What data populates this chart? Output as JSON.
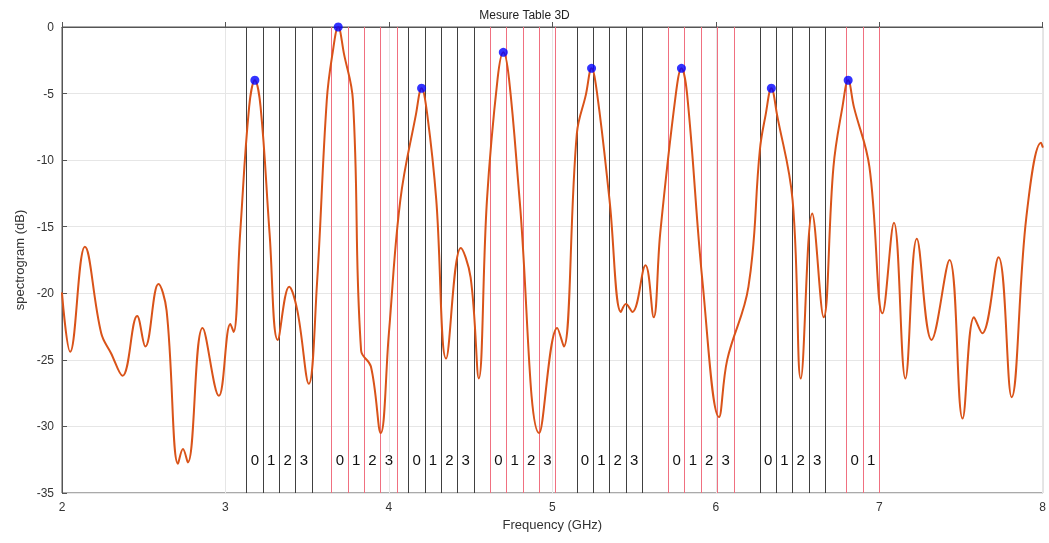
{
  "chart_data": {
    "type": "line",
    "title": "Mesure Table 3D",
    "xlabel": "Frequency (GHz)",
    "ylabel": "spectrogram (dB)",
    "xlim": [
      2,
      8
    ],
    "xticks": [
      2,
      3,
      4,
      5,
      6,
      7,
      8
    ],
    "ylim": [
      -35,
      0
    ],
    "yticks": [
      -35,
      -30,
      -25,
      -20,
      -15,
      -10,
      -5,
      0
    ],
    "grid": true,
    "series": [
      {
        "color": "#d95319",
        "x": [
          2.0,
          2.05,
          2.14,
          2.24,
          2.3,
          2.37,
          2.46,
          2.51,
          2.59,
          2.64,
          2.71,
          2.74,
          2.77,
          2.86,
          2.96,
          3.03,
          3.05,
          3.09,
          3.145,
          3.18,
          3.215,
          3.27,
          3.32,
          3.39,
          3.44,
          3.51,
          3.56,
          3.62,
          3.655,
          3.69,
          3.725,
          3.78,
          3.83,
          3.89,
          3.95,
          4.0,
          4.07,
          4.165,
          4.2,
          4.235,
          4.29,
          4.35,
          4.44,
          4.5,
          4.55,
          4.6,
          4.665,
          4.7,
          4.735,
          4.8,
          4.92,
          5.03,
          5.07,
          5.15,
          5.205,
          5.24,
          5.275,
          5.35,
          5.42,
          5.45,
          5.49,
          5.57,
          5.62,
          5.66,
          5.755,
          5.79,
          5.825,
          5.92,
          6.02,
          6.07,
          6.2,
          6.27,
          6.305,
          6.34,
          6.375,
          6.47,
          6.52,
          6.59,
          6.66,
          6.72,
          6.775,
          6.81,
          6.845,
          6.94,
          7.02,
          7.09,
          7.16,
          7.23,
          7.32,
          7.43,
          7.51,
          7.58,
          7.63,
          7.73,
          7.81,
          7.9,
          7.99,
          8.0
        ],
        "values": [
          -20.0,
          -24.4,
          -16.5,
          -23.0,
          -24.5,
          -26.2,
          -21.7,
          -24.0,
          -19.3,
          -21.3,
          -32.8,
          -31.7,
          -32.7,
          -22.6,
          -27.7,
          -22.3,
          -22.9,
          -15.5,
          -6.0,
          -4.0,
          -6.0,
          -15.5,
          -23.5,
          -19.5,
          -21.3,
          -26.8,
          -19.3,
          -5.5,
          -2.0,
          0,
          -2.0,
          -5.5,
          -24.3,
          -25.5,
          -30.5,
          -23.0,
          -13.0,
          -6.6,
          -4.6,
          -6.6,
          -13.0,
          -24.9,
          -16.6,
          -18.8,
          -26.4,
          -13.0,
          -3.9,
          -1.9,
          -3.9,
          -13.0,
          -30.5,
          -22.6,
          -24.0,
          -8.0,
          -5.1,
          -3.1,
          -5.1,
          -13.0,
          -21.4,
          -20.8,
          -21.4,
          -17.9,
          -21.8,
          -15.5,
          -5.1,
          -3.1,
          -5.1,
          -19.3,
          -29.3,
          -25.0,
          -19.5,
          -9.2,
          -6.6,
          -4.6,
          -6.6,
          -13.0,
          -26.4,
          -14.0,
          -21.8,
          -10.5,
          -6.0,
          -4.0,
          -6.0,
          -10.5,
          -21.5,
          -14.7,
          -26.4,
          -15.9,
          -23.5,
          -17.5,
          -29.4,
          -21.8,
          -23.0,
          -17.3,
          -27.8,
          -14.3,
          -8.7,
          -9.0
        ]
      },
      {
        "type": "scatter",
        "color": "#0000ff",
        "x": [
          3.18,
          3.69,
          4.2,
          4.7,
          5.24,
          5.79,
          6.34,
          6.81
        ],
        "values": [
          -4.0,
          0,
          -4.6,
          -1.9,
          -3.1,
          -3.1,
          -4.6,
          -4.0
        ]
      }
    ],
    "ref_lines": [
      {
        "axis": "x",
        "value": 3.13,
        "color": "#404040"
      },
      {
        "axis": "x",
        "value": 3.23,
        "color": "#404040"
      },
      {
        "axis": "x",
        "value": 3.33,
        "color": "#404040"
      },
      {
        "axis": "x",
        "value": 3.43,
        "color": "#404040"
      },
      {
        "axis": "x",
        "value": 3.53,
        "color": "#404040"
      },
      {
        "axis": "x",
        "value": 3.65,
        "color": "#f07080"
      },
      {
        "axis": "x",
        "value": 3.75,
        "color": "#f07080"
      },
      {
        "axis": "x",
        "value": 3.85,
        "color": "#f07080"
      },
      {
        "axis": "x",
        "value": 3.95,
        "color": "#f07080"
      },
      {
        "axis": "x",
        "value": 4.05,
        "color": "#f07080"
      },
      {
        "axis": "x",
        "value": 4.12,
        "color": "#404040"
      },
      {
        "axis": "x",
        "value": 4.22,
        "color": "#404040"
      },
      {
        "axis": "x",
        "value": 4.32,
        "color": "#404040"
      },
      {
        "axis": "x",
        "value": 4.42,
        "color": "#404040"
      },
      {
        "axis": "x",
        "value": 4.52,
        "color": "#404040"
      },
      {
        "axis": "x",
        "value": 4.62,
        "color": "#f07080"
      },
      {
        "axis": "x",
        "value": 4.72,
        "color": "#f07080"
      },
      {
        "axis": "x",
        "value": 4.82,
        "color": "#f07080"
      },
      {
        "axis": "x",
        "value": 4.92,
        "color": "#f07080"
      },
      {
        "axis": "x",
        "value": 5.02,
        "color": "#f07080"
      },
      {
        "axis": "x",
        "value": 5.15,
        "color": "#404040"
      },
      {
        "axis": "x",
        "value": 5.25,
        "color": "#404040"
      },
      {
        "axis": "x",
        "value": 5.35,
        "color": "#404040"
      },
      {
        "axis": "x",
        "value": 5.45,
        "color": "#404040"
      },
      {
        "axis": "x",
        "value": 5.55,
        "color": "#404040"
      },
      {
        "axis": "x",
        "value": 5.71,
        "color": "#f07080"
      },
      {
        "axis": "x",
        "value": 5.81,
        "color": "#f07080"
      },
      {
        "axis": "x",
        "value": 5.91,
        "color": "#f07080"
      },
      {
        "axis": "x",
        "value": 6.01,
        "color": "#f07080"
      },
      {
        "axis": "x",
        "value": 6.11,
        "color": "#f07080"
      },
      {
        "axis": "x",
        "value": 6.27,
        "color": "#404040"
      },
      {
        "axis": "x",
        "value": 6.37,
        "color": "#404040"
      },
      {
        "axis": "x",
        "value": 6.47,
        "color": "#404040"
      },
      {
        "axis": "x",
        "value": 6.57,
        "color": "#404040"
      },
      {
        "axis": "x",
        "value": 6.67,
        "color": "#404040"
      },
      {
        "axis": "x",
        "value": 6.8,
        "color": "#f07080"
      },
      {
        "axis": "x",
        "value": 6.9,
        "color": "#f07080"
      },
      {
        "axis": "x",
        "value": 7.0,
        "color": "#f07080"
      }
    ],
    "annotations": [
      {
        "text": "0",
        "x": 3.18,
        "y": -32.5
      },
      {
        "text": "1",
        "x": 3.28,
        "y": -32.5
      },
      {
        "text": "2",
        "x": 3.38,
        "y": -32.5
      },
      {
        "text": "3",
        "x": 3.48,
        "y": -32.5
      },
      {
        "text": "0",
        "x": 3.7,
        "y": -32.5
      },
      {
        "text": "1",
        "x": 3.8,
        "y": -32.5
      },
      {
        "text": "2",
        "x": 3.9,
        "y": -32.5
      },
      {
        "text": "3",
        "x": 4.0,
        "y": -32.5
      },
      {
        "text": "0",
        "x": 4.17,
        "y": -32.5
      },
      {
        "text": "1",
        "x": 4.27,
        "y": -32.5
      },
      {
        "text": "2",
        "x": 4.37,
        "y": -32.5
      },
      {
        "text": "3",
        "x": 4.47,
        "y": -32.5
      },
      {
        "text": "0",
        "x": 4.67,
        "y": -32.5
      },
      {
        "text": "1",
        "x": 4.77,
        "y": -32.5
      },
      {
        "text": "2",
        "x": 4.87,
        "y": -32.5
      },
      {
        "text": "3",
        "x": 4.97,
        "y": -32.5
      },
      {
        "text": "0",
        "x": 5.2,
        "y": -32.5
      },
      {
        "text": "1",
        "x": 5.3,
        "y": -32.5
      },
      {
        "text": "2",
        "x": 5.4,
        "y": -32.5
      },
      {
        "text": "3",
        "x": 5.5,
        "y": -32.5
      },
      {
        "text": "0",
        "x": 5.76,
        "y": -32.5
      },
      {
        "text": "1",
        "x": 5.86,
        "y": -32.5
      },
      {
        "text": "2",
        "x": 5.96,
        "y": -32.5
      },
      {
        "text": "3",
        "x": 6.06,
        "y": -32.5
      },
      {
        "text": "0",
        "x": 6.32,
        "y": -32.5
      },
      {
        "text": "1",
        "x": 6.42,
        "y": -32.5
      },
      {
        "text": "2",
        "x": 6.52,
        "y": -32.5
      },
      {
        "text": "3",
        "x": 6.62,
        "y": -32.5
      },
      {
        "text": "0",
        "x": 6.85,
        "y": -32.5
      },
      {
        "text": "1",
        "x": 6.95,
        "y": -32.5
      }
    ]
  }
}
